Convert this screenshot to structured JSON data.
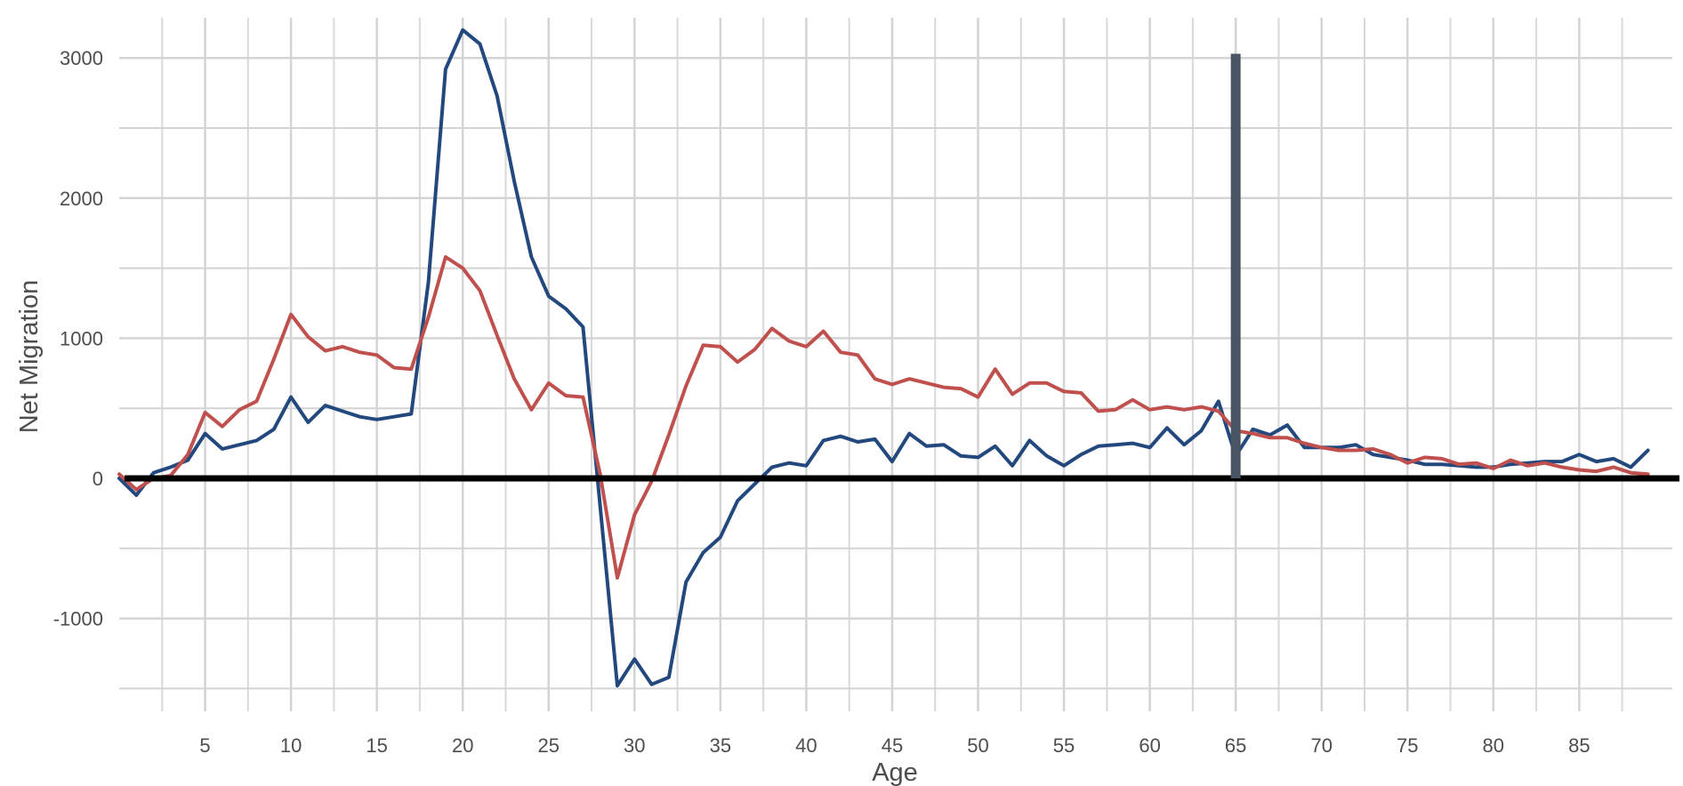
{
  "chart_data": {
    "type": "line",
    "xlabel": "Age",
    "ylabel": "Net Migration",
    "xlim": [
      0,
      89
    ],
    "ylim": [
      -1500,
      3200
    ],
    "grid": true,
    "legend": "none",
    "x_ticks": [
      5,
      10,
      15,
      20,
      25,
      30,
      35,
      40,
      45,
      50,
      55,
      60,
      65,
      70,
      75,
      80,
      85
    ],
    "y_ticks": [
      -1000,
      0,
      1000,
      2000,
      3000
    ],
    "reference_lines": [
      {
        "type": "horizontal",
        "value": 0,
        "color": "#000000"
      },
      {
        "type": "vertical",
        "value": 65,
        "from": 0,
        "to": 3030,
        "color": "#4a5563"
      }
    ],
    "x": [
      0,
      1,
      2,
      3,
      4,
      5,
      6,
      7,
      8,
      9,
      10,
      11,
      12,
      13,
      14,
      15,
      16,
      17,
      18,
      19,
      20,
      21,
      22,
      23,
      24,
      25,
      26,
      27,
      28,
      29,
      30,
      31,
      32,
      33,
      34,
      35,
      36,
      37,
      38,
      39,
      40,
      41,
      42,
      43,
      44,
      45,
      46,
      47,
      48,
      49,
      50,
      51,
      52,
      53,
      54,
      55,
      56,
      57,
      58,
      59,
      60,
      61,
      62,
      63,
      64,
      65,
      66,
      67,
      68,
      69,
      70,
      71,
      72,
      73,
      74,
      75,
      76,
      77,
      78,
      79,
      80,
      81,
      82,
      83,
      84,
      85,
      86,
      87,
      88,
      89
    ],
    "series": [
      {
        "color": "#23487e",
        "values": [
          0,
          -120,
          40,
          80,
          130,
          320,
          210,
          240,
          270,
          350,
          580,
          400,
          520,
          480,
          440,
          420,
          440,
          460,
          1400,
          2920,
          3200,
          3100,
          2730,
          2120,
          1580,
          1300,
          1210,
          1080,
          -200,
          -1480,
          -1290,
          -1470,
          -1420,
          -740,
          -530,
          -420,
          -160,
          -40,
          80,
          110,
          90,
          270,
          300,
          260,
          280,
          120,
          320,
          230,
          240,
          160,
          150,
          230,
          90,
          270,
          160,
          90,
          170,
          230,
          240,
          250,
          220,
          360,
          240,
          340,
          550,
          160,
          350,
          310,
          380,
          220,
          220,
          220,
          240,
          170,
          150,
          130,
          100,
          100,
          90,
          80,
          80,
          100,
          110,
          120,
          120,
          170,
          120,
          140,
          80,
          200
        ]
      },
      {
        "color": "#c0504d",
        "values": [
          30,
          -80,
          0,
          20,
          170,
          470,
          370,
          490,
          550,
          850,
          1170,
          1010,
          910,
          940,
          900,
          880,
          790,
          780,
          1150,
          1580,
          1500,
          1340,
          1020,
          710,
          490,
          680,
          590,
          580,
          30,
          -710,
          -260,
          -20,
          310,
          660,
          950,
          940,
          830,
          920,
          1070,
          980,
          940,
          1050,
          900,
          880,
          710,
          670,
          710,
          680,
          650,
          640,
          580,
          780,
          600,
          680,
          680,
          620,
          610,
          480,
          490,
          560,
          490,
          510,
          490,
          510,
          480,
          340,
          320,
          290,
          290,
          250,
          220,
          200,
          200,
          210,
          170,
          110,
          150,
          140,
          100,
          110,
          70,
          130,
          90,
          110,
          80,
          60,
          50,
          80,
          40,
          30
        ]
      }
    ]
  }
}
